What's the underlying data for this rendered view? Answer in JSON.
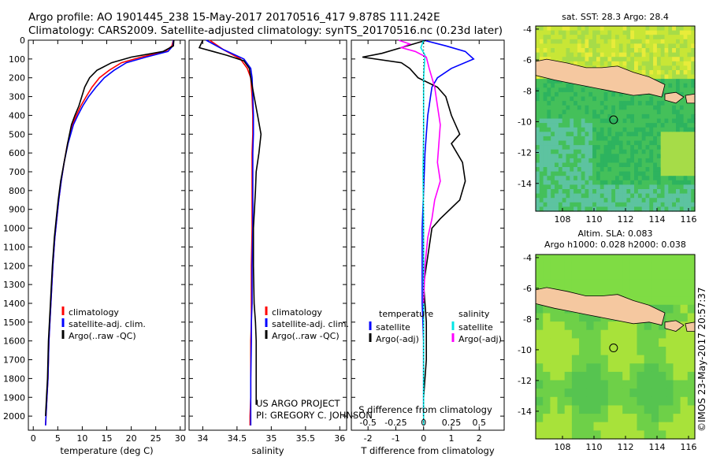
{
  "title_line1": "Argo profile: AO 1901445_238 15-May-2017 20170516_417 9.878S 111.242E",
  "title_line2": "Climatology: CARS2009. Satellite-adjusted climatology: synTS_20170516.nc (0.23d later)",
  "side_label": "©IMOS 23-May-2017 20:57:37",
  "colors": {
    "climatology": "#ff0000",
    "satellite": "#0000ff",
    "argo": "#000000",
    "sal_satellite": "#00e5e5",
    "sal_argo": "#ff00ff"
  },
  "chart_data": [
    {
      "type": "line",
      "id": "temperature",
      "xlabel": "temperature (deg C)",
      "xlim": [
        -1,
        31
      ],
      "ylim": [
        0,
        2075
      ],
      "y_reversed": true,
      "xticks": [
        0,
        5,
        10,
        15,
        20,
        25,
        30
      ],
      "yticks": [
        0,
        100,
        200,
        300,
        400,
        500,
        600,
        700,
        800,
        900,
        1000,
        1100,
        1200,
        1300,
        1400,
        1500,
        1600,
        1700,
        1800,
        1900,
        2000
      ],
      "legend": [
        "climatology",
        "satellite-adj. clim.",
        "Argo(..raw -QC)"
      ],
      "series": [
        {
          "name": "climatology",
          "color": "#ff0000",
          "x": [
            28.6,
            28.3,
            27.0,
            22.0,
            18.0,
            15.5,
            13.5,
            12.0,
            10.8,
            9.7,
            8.8,
            8.0,
            7.0,
            6.3,
            5.7,
            5.2,
            4.8,
            4.4,
            4.0,
            3.6,
            3.2,
            3.0,
            2.8,
            2.6,
            2.5
          ],
          "y": [
            0,
            30,
            60,
            90,
            120,
            160,
            200,
            250,
            300,
            350,
            400,
            450,
            550,
            650,
            750,
            850,
            950,
            1050,
            1200,
            1400,
            1600,
            1800,
            1900,
            2000,
            2050
          ]
        },
        {
          "name": "satellite-adj. clim.",
          "color": "#0000ff",
          "x": [
            28.6,
            28.5,
            27.5,
            23.0,
            19.0,
            16.5,
            14.5,
            12.8,
            11.3,
            10.1,
            9.1,
            8.2,
            7.1,
            6.3,
            5.7,
            5.2,
            4.8,
            4.4,
            4.0,
            3.6,
            3.2,
            3.0,
            2.8,
            2.6,
            2.5
          ],
          "y": [
            0,
            30,
            60,
            90,
            120,
            160,
            200,
            250,
            300,
            350,
            400,
            450,
            550,
            650,
            750,
            850,
            950,
            1050,
            1200,
            1400,
            1600,
            1800,
            1900,
            2000,
            2050
          ]
        },
        {
          "name": "Argo(..raw -QC)",
          "color": "#000000",
          "x": [
            28.7,
            28.6,
            26.5,
            20.0,
            16.0,
            13.0,
            11.5,
            10.5,
            9.9,
            9.3,
            8.5,
            7.8,
            7.0,
            6.3,
            5.6,
            5.1,
            4.7,
            4.3,
            3.9,
            3.5,
            3.1,
            2.9,
            2.7,
            2.5
          ],
          "y": [
            0,
            30,
            60,
            90,
            120,
            160,
            200,
            250,
            300,
            350,
            400,
            450,
            550,
            650,
            750,
            850,
            950,
            1050,
            1200,
            1400,
            1600,
            1800,
            1900,
            2000
          ]
        }
      ]
    },
    {
      "type": "line",
      "id": "salinity",
      "xlabel": "salinity",
      "xlim": [
        33.8,
        36.1
      ],
      "ylim": [
        0,
        2075
      ],
      "y_reversed": true,
      "xticks": [
        34,
        34.5,
        35,
        35.5,
        36
      ],
      "xticklabels": [
        "34",
        "34.5",
        "35",
        "35.5",
        "36"
      ],
      "legend": [
        "climatology",
        "satellite-adj. clim.",
        "Argo(..raw -QC)"
      ],
      "annotation": [
        "US ARGO PROJECT",
        "PI: GREGORY C. JOHNSON"
      ],
      "series": [
        {
          "name": "climatology",
          "color": "#ff0000",
          "x": [
            34.1,
            34.3,
            34.55,
            34.65,
            34.7,
            34.72,
            34.73,
            34.73,
            34.72,
            34.72,
            34.72,
            34.71,
            34.71,
            34.71,
            34.7,
            34.7,
            34.7,
            34.69,
            34.69
          ],
          "y": [
            0,
            50,
            100,
            150,
            200,
            300,
            400,
            500,
            600,
            800,
            1000,
            1200,
            1400,
            1500,
            1600,
            1800,
            1900,
            2000,
            2050
          ]
        },
        {
          "name": "satellite-adj. clim.",
          "color": "#0000ff",
          "x": [
            34.05,
            34.3,
            34.6,
            34.7,
            34.72,
            34.73,
            34.74,
            34.74,
            34.73,
            34.73,
            34.73,
            34.72,
            34.72,
            34.71,
            34.71,
            34.7,
            34.7,
            34.7,
            34.7
          ],
          "y": [
            0,
            50,
            100,
            150,
            200,
            300,
            400,
            500,
            600,
            800,
            1000,
            1200,
            1400,
            1500,
            1600,
            1800,
            1900,
            2000,
            2050
          ]
        },
        {
          "name": "Argo(..raw -QC)",
          "color": "#000000",
          "x": [
            34.0,
            33.95,
            34.15,
            34.35,
            34.6,
            34.68,
            34.7,
            34.75,
            34.8,
            34.85,
            34.82,
            34.78,
            34.77,
            34.74,
            34.74,
            34.75,
            34.77,
            34.78,
            34.78,
            34.78,
            34.78
          ],
          "y": [
            0,
            40,
            60,
            80,
            110,
            150,
            200,
            300,
            400,
            500,
            600,
            700,
            800,
            1000,
            1200,
            1400,
            1500,
            1600,
            1700,
            1800,
            1940
          ]
        }
      ]
    },
    {
      "type": "line",
      "id": "difference",
      "xlabel": "T difference from climatology",
      "xlabel_top": "S difference from climatology",
      "xlim": [
        -2.6,
        2.9
      ],
      "ylim": [
        0,
        2075
      ],
      "y_reversed": true,
      "xticks": [
        -2,
        -1,
        0,
        1,
        2
      ],
      "top_ticks": [
        "-0.5",
        "-0.25",
        "0",
        "0.25",
        "0.5"
      ],
      "legend": [
        [
          "temperature",
          "satellite",
          "Argo(-adj)"
        ],
        [
          "salinity",
          "satellite",
          "Argo(-adj)"
        ]
      ],
      "series": [
        {
          "name": "temperature satellite",
          "color": "#0000ff",
          "x": [
            0,
            0.8,
            1.5,
            1.8,
            1.0,
            0.5,
            0.3,
            0.25,
            0.2,
            0.15,
            0.1,
            0.05,
            0.0,
            -0.05,
            -0.05,
            -0.05,
            0.0,
            0.0,
            0.0
          ],
          "y": [
            0,
            30,
            60,
            100,
            150,
            200,
            250,
            300,
            350,
            400,
            500,
            600,
            800,
            1000,
            1200,
            1400,
            1600,
            1800,
            2000
          ]
        },
        {
          "name": "temperature Argo(-adj)",
          "color": "#000000",
          "x": [
            0.1,
            -1.5,
            -2.2,
            -0.8,
            -0.5,
            -0.2,
            0.5,
            0.8,
            1.0,
            1.3,
            1.0,
            1.4,
            1.5,
            1.3,
            0.6,
            0.3,
            0.2,
            0.0,
            0.1,
            0.1,
            0.0
          ],
          "y": [
            0,
            70,
            90,
            120,
            150,
            200,
            250,
            300,
            400,
            500,
            550,
            650,
            750,
            850,
            950,
            1000,
            1100,
            1300,
            1500,
            1700,
            1900
          ]
        },
        {
          "name": "salinity satellite",
          "color": "#00e5e5",
          "x": [
            0,
            -0.1,
            0.05,
            0.02,
            0.0,
            0.0,
            0.0,
            -0.02,
            0.0,
            0.0,
            0.0,
            0.0,
            0.0
          ],
          "y": [
            0,
            40,
            80,
            150,
            200,
            300,
            500,
            700,
            1000,
            1300,
            1500,
            1800,
            2050
          ]
        },
        {
          "name": "salinity Argo(-adj)",
          "color": "#ff00ff",
          "x": [
            -0.9,
            -0.5,
            -0.8,
            -0.3,
            0.1,
            0.2,
            0.4,
            0.5,
            0.6,
            0.55,
            0.5,
            0.6,
            0.4,
            0.3,
            0.15,
            0.05,
            0.0
          ],
          "y": [
            0,
            20,
            40,
            60,
            90,
            150,
            250,
            350,
            450,
            550,
            650,
            750,
            850,
            950,
            1050,
            1200,
            1400
          ]
        }
      ]
    },
    {
      "type": "heatmap",
      "id": "sst_map",
      "title": "sat. SST: 28.3 Argo: 28.4",
      "xticks": [
        108,
        110,
        112,
        114,
        116
      ],
      "yticks": [
        -4,
        -6,
        -8,
        -10,
        -12,
        -14
      ],
      "xlim": [
        106.3,
        116.4
      ],
      "ylim": [
        -15.8,
        -3.8
      ],
      "marker": {
        "lon": 111.242,
        "lat": -9.878
      },
      "land_color": "#f5c8a0"
    },
    {
      "type": "heatmap",
      "id": "sla_map",
      "title_lines": [
        "Altim. SLA: 0.083",
        "Argo h1000: 0.028 h2000: 0.038"
      ],
      "xticks": [
        108,
        110,
        112,
        114,
        116
      ],
      "yticks": [
        -4,
        -6,
        -8,
        -10,
        -12,
        -14
      ],
      "xlim": [
        106.3,
        116.4
      ],
      "ylim": [
        -15.8,
        -3.8
      ],
      "marker": {
        "lon": 111.242,
        "lat": -9.878
      },
      "land_color": "#f5c8a0"
    }
  ]
}
